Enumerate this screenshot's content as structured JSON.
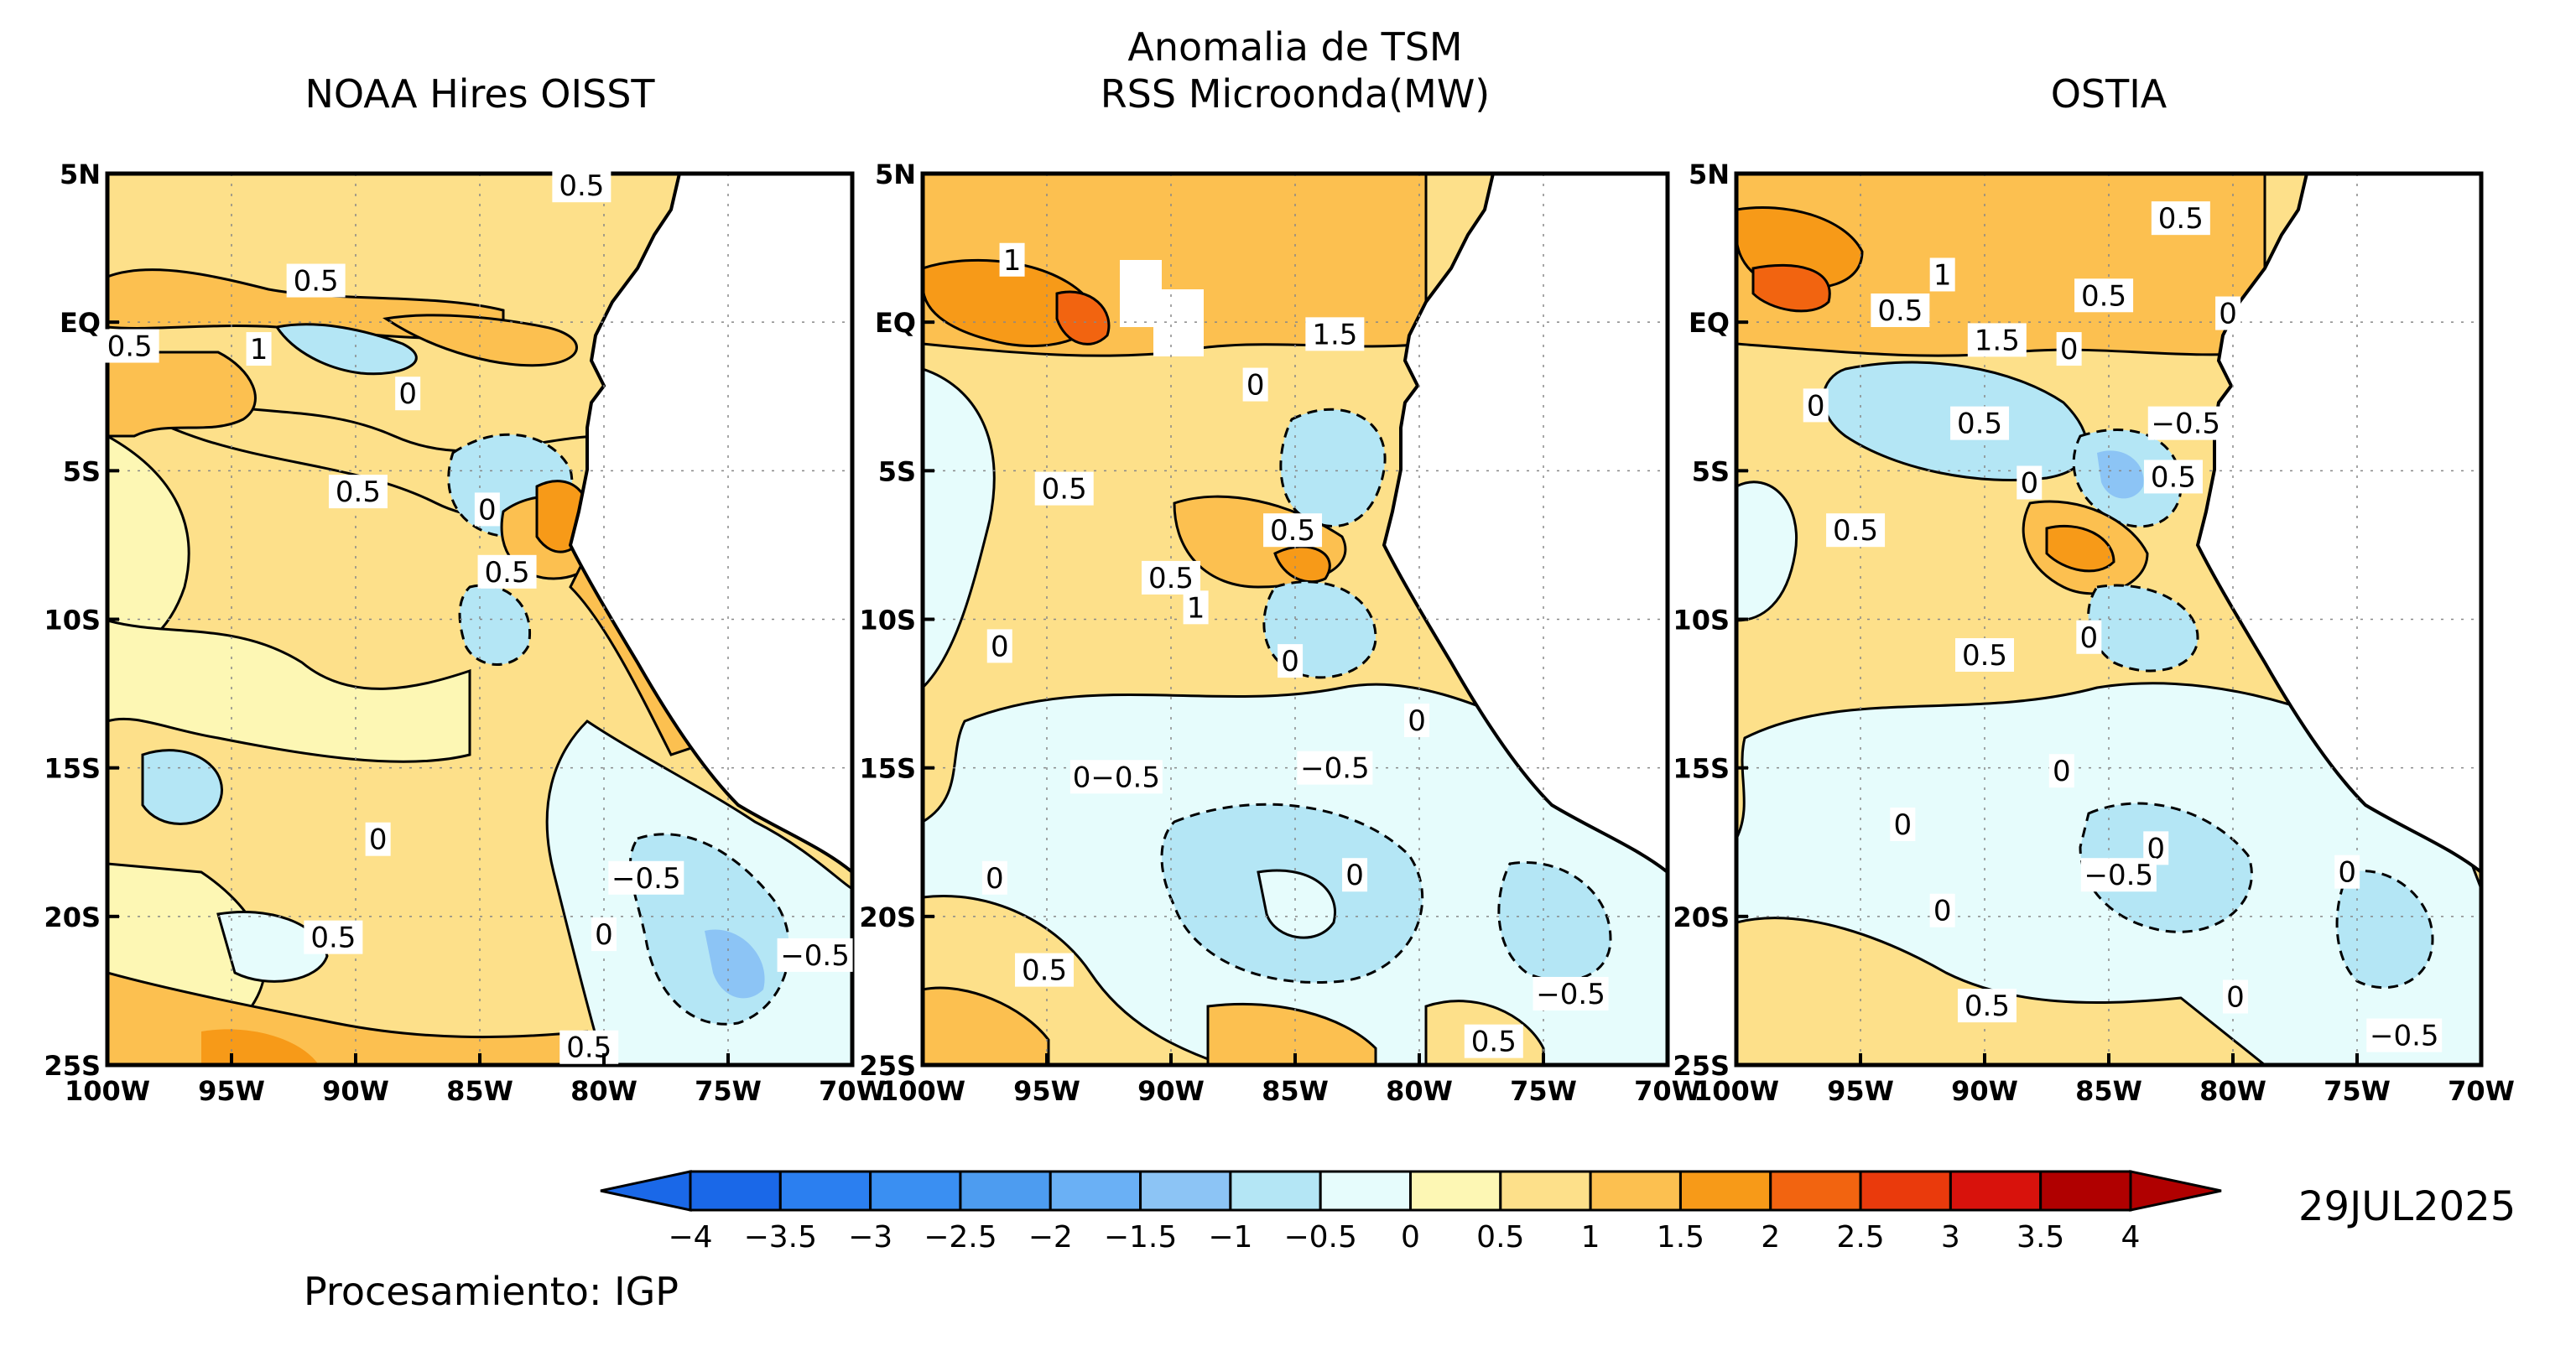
{
  "title": {
    "left": "NOAA Hires OISST",
    "center_line1": "Anomalia de TSM",
    "center_line2": "RSS Microonda(MW)",
    "right": "OSTIA"
  },
  "axes": {
    "y_ticks": [
      "5N",
      "EQ",
      "5S",
      "10S",
      "15S",
      "20S",
      "25S"
    ],
    "x_ticks": [
      "100W",
      "95W",
      "90W",
      "85W",
      "80W",
      "75W",
      "70W"
    ]
  },
  "panels": [
    {
      "name": "NOAA Hires OISST",
      "contour_labels": [
        {
          "text": "0.5",
          "lon": -80.9,
          "lat": 4.6
        },
        {
          "text": "0.5",
          "lon": -91.6,
          "lat": 1.4
        },
        {
          "text": "0.5",
          "lon": -99.1,
          "lat": -0.8
        },
        {
          "text": "1",
          "lon": -93.9,
          "lat": -0.9
        },
        {
          "text": "0",
          "lon": -87.9,
          "lat": -2.4
        },
        {
          "text": "0.5",
          "lon": -89.9,
          "lat": -5.7
        },
        {
          "text": "0",
          "lon": -84.7,
          "lat": -6.3
        },
        {
          "text": "0.5",
          "lon": -83.9,
          "lat": -8.4
        },
        {
          "text": "0",
          "lon": -89.1,
          "lat": -17.4
        },
        {
          "text": "−0.5",
          "lon": -78.3,
          "lat": -18.7
        },
        {
          "text": "0",
          "lon": -80.0,
          "lat": -20.6
        },
        {
          "text": "0.5",
          "lon": -90.9,
          "lat": -20.7
        },
        {
          "text": "−0.5",
          "lon": -71.5,
          "lat": -21.3
        },
        {
          "text": "0.5",
          "lon": -80.6,
          "lat": -24.4
        }
      ]
    },
    {
      "name": "RSS Microonda(MW)",
      "contour_labels": [
        {
          "text": "1",
          "lon": -96.4,
          "lat": 2.1
        },
        {
          "text": "1.5",
          "lon": -83.4,
          "lat": -0.4
        },
        {
          "text": "0",
          "lon": -86.6,
          "lat": -2.1
        },
        {
          "text": "0.5",
          "lon": -94.3,
          "lat": -5.6
        },
        {
          "text": "0.5",
          "lon": -85.1,
          "lat": -7.0
        },
        {
          "text": "0.5",
          "lon": -90.0,
          "lat": -8.6
        },
        {
          "text": "1",
          "lon": -89.0,
          "lat": -9.6
        },
        {
          "text": "0",
          "lon": -96.9,
          "lat": -10.9
        },
        {
          "text": "0",
          "lon": -85.2,
          "lat": -11.4
        },
        {
          "text": "0",
          "lon": -80.1,
          "lat": -13.4
        },
        {
          "text": "0−0.5",
          "lon": -92.2,
          "lat": -15.3
        },
        {
          "text": "−0.5",
          "lon": -83.4,
          "lat": -15.0
        },
        {
          "text": "0",
          "lon": -97.1,
          "lat": -18.7
        },
        {
          "text": "0",
          "lon": -82.6,
          "lat": -18.6
        },
        {
          "text": "0.5",
          "lon": -95.1,
          "lat": -21.8
        },
        {
          "text": "−0.5",
          "lon": -73.9,
          "lat": -22.6
        },
        {
          "text": "0.5",
          "lon": -77.0,
          "lat": -24.2
        }
      ]
    },
    {
      "name": "OSTIA",
      "contour_labels": [
        {
          "text": "0.5",
          "lon": -82.1,
          "lat": 3.5
        },
        {
          "text": "1",
          "lon": -91.7,
          "lat": 1.6
        },
        {
          "text": "0.5",
          "lon": -85.2,
          "lat": 0.9
        },
        {
          "text": "0.5",
          "lon": -93.4,
          "lat": 0.4
        },
        {
          "text": "0",
          "lon": -80.2,
          "lat": 0.3
        },
        {
          "text": "1.5",
          "lon": -89.5,
          "lat": -0.6
        },
        {
          "text": "0",
          "lon": -86.6,
          "lat": -0.9
        },
        {
          "text": "0",
          "lon": -96.8,
          "lat": -2.8
        },
        {
          "text": "0.5",
          "lon": -90.2,
          "lat": -3.4
        },
        {
          "text": "−0.5",
          "lon": -81.9,
          "lat": -3.4
        },
        {
          "text": "0",
          "lon": -88.2,
          "lat": -5.4
        },
        {
          "text": "0.5",
          "lon": -82.4,
          "lat": -5.2
        },
        {
          "text": "0.5",
          "lon": -95.2,
          "lat": -7.0
        },
        {
          "text": "0.5",
          "lon": -90.0,
          "lat": -11.2
        },
        {
          "text": "0",
          "lon": -85.8,
          "lat": -10.6
        },
        {
          "text": "0",
          "lon": -86.9,
          "lat": -15.1
        },
        {
          "text": "0",
          "lon": -93.3,
          "lat": -16.9
        },
        {
          "text": "0",
          "lon": -83.1,
          "lat": -17.7
        },
        {
          "text": "−0.5",
          "lon": -84.6,
          "lat": -18.6
        },
        {
          "text": "0",
          "lon": -75.4,
          "lat": -18.5
        },
        {
          "text": "0",
          "lon": -91.7,
          "lat": -19.8
        },
        {
          "text": "0.5",
          "lon": -89.9,
          "lat": -23.0
        },
        {
          "text": "0",
          "lon": -79.9,
          "lat": -22.7
        },
        {
          "text": "−0.5",
          "lon": -73.1,
          "lat": -24.0
        }
      ]
    }
  ],
  "colorbar": {
    "ticks": [
      "−4",
      "−3.5",
      "−3",
      "−2.5",
      "−2",
      "−1.5",
      "−1",
      "−0.5",
      "0",
      "0.5",
      "1",
      "1.5",
      "2",
      "2.5",
      "3",
      "3.5",
      "4"
    ],
    "colors": [
      "#1a68e8",
      "#2b7ff0",
      "#3a8ff2",
      "#4d9cf0",
      "#6ab0f5",
      "#8cc4f5",
      "#b4e6f5",
      "#e6fcfc",
      "#fdf7b4",
      "#fde08a",
      "#fcc050",
      "#f79a18",
      "#f26410",
      "#ea3a0c",
      "#d8120c",
      "#b00000"
    ]
  },
  "date": "29JUL2025",
  "credit": "Procesamiento: IGP"
}
